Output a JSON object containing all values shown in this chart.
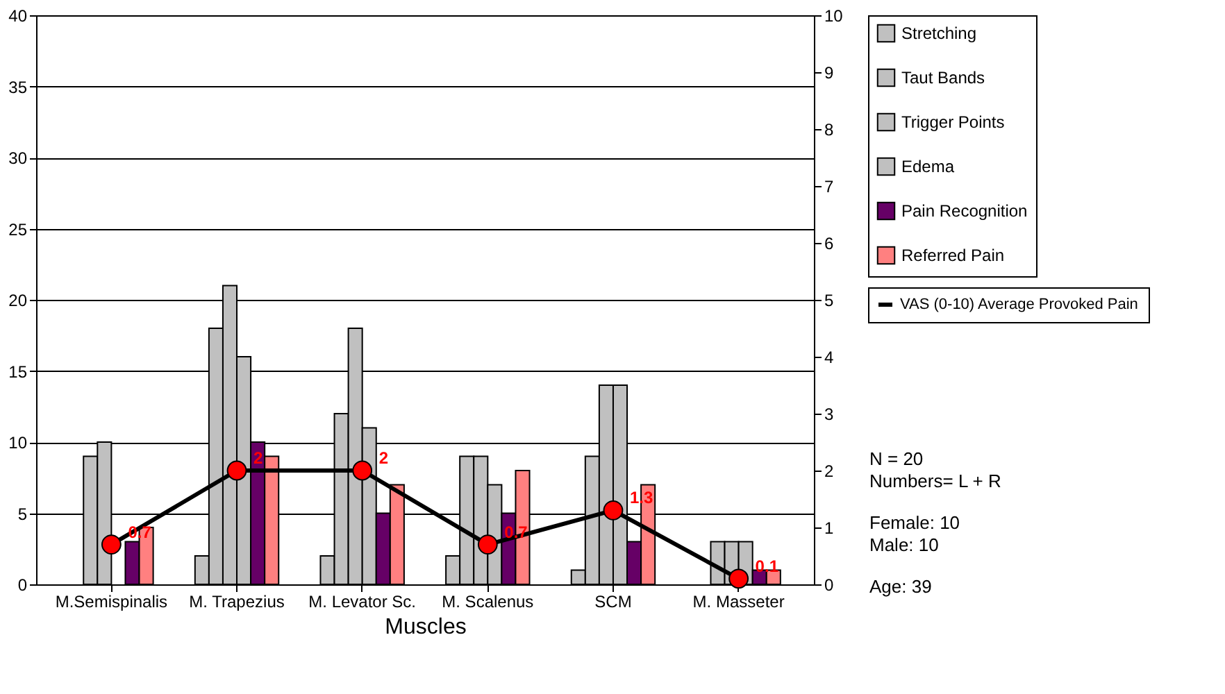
{
  "chart_data": {
    "type": "bar",
    "xlabel": "Muscles",
    "categories": [
      "M.Semispinalis",
      "M. Trapezius",
      "M. Levator Sc.",
      "M. Scalenus",
      "SCM",
      "M. Masseter"
    ],
    "series": [
      {
        "name": "Stretching",
        "color": "#c0c0c0",
        "values": [
          0,
          2,
          2,
          2,
          1,
          0
        ]
      },
      {
        "name": "Taut Bands",
        "color": "#c0c0c0",
        "values": [
          9,
          18,
          12,
          9,
          9,
          3
        ]
      },
      {
        "name": "Trigger Points",
        "color": "#c0c0c0",
        "values": [
          10,
          21,
          18,
          9,
          14,
          3
        ]
      },
      {
        "name": "Edema",
        "color": "#c0c0c0",
        "values": [
          0,
          16,
          11,
          7,
          14,
          3
        ]
      },
      {
        "name": "Pain Recognition",
        "color": "#660066",
        "values": [
          3,
          10,
          5,
          5,
          3,
          1
        ]
      },
      {
        "name": "Referred Pain",
        "color": "#ff8080",
        "values": [
          4,
          9,
          7,
          8,
          7,
          1
        ]
      },
      {
        "name": "VAS (0-10) Average Provoked Pain",
        "color": "#ff0000",
        "type": "line",
        "axis": "y2",
        "values": [
          0.7,
          2,
          2,
          0.7,
          1.3,
          0.1
        ],
        "value_labels": [
          "0.7",
          "2",
          "2",
          "0.7",
          "1.3",
          "0.1"
        ]
      }
    ],
    "ylim": [
      0,
      40
    ],
    "yticks": [
      0,
      5,
      10,
      15,
      20,
      25,
      30,
      35,
      40
    ],
    "y2lim": [
      0,
      10
    ],
    "y2ticks": [
      0,
      1,
      2,
      3,
      4,
      5,
      6,
      7,
      8,
      9,
      10
    ],
    "grid": "y",
    "legend": "right",
    "marker": "circle",
    "line_style": "solid",
    "annotations": [
      "N = 20",
      "Numbers= L + R",
      "Female: 10",
      "Male:     10",
      "Age: 39"
    ]
  }
}
